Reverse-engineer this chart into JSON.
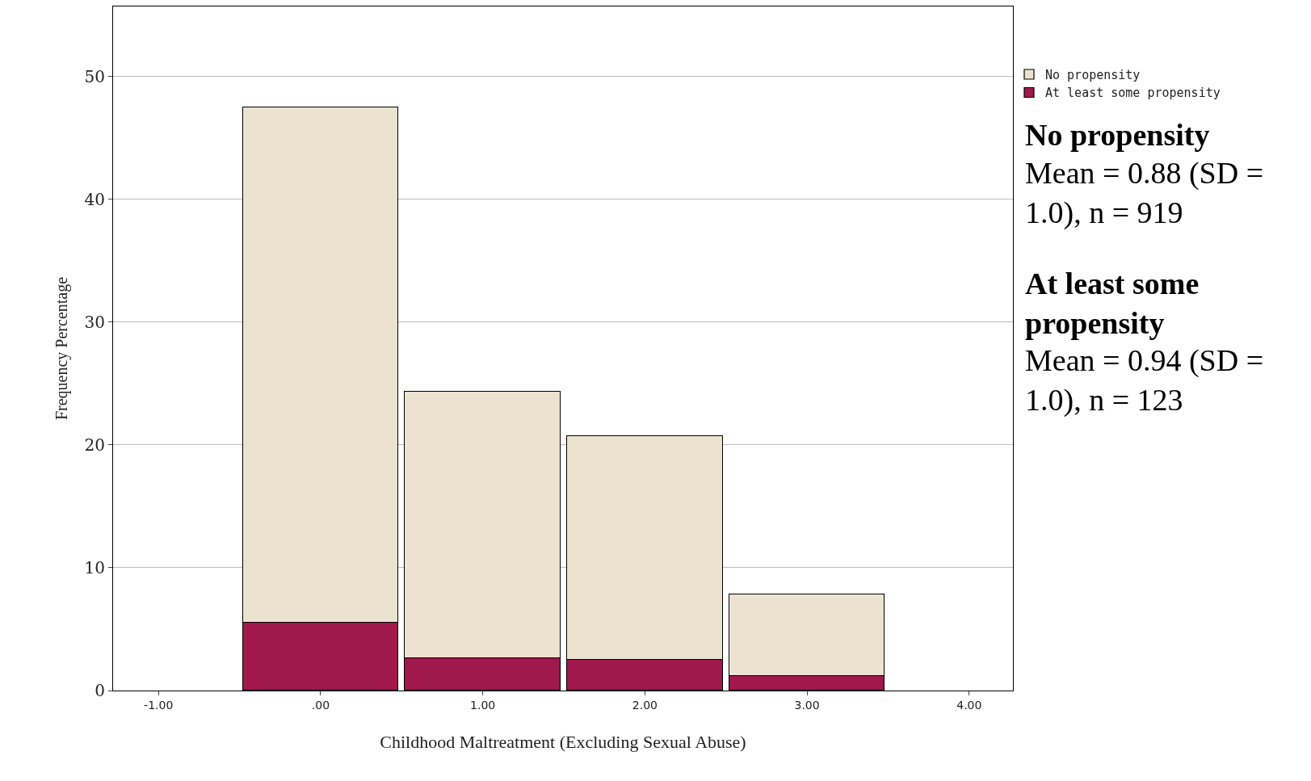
{
  "chart_data": {
    "type": "bar",
    "stacked": true,
    "xlabel": "Childhood Maltreatment (Excluding Sexual Abuse)",
    "ylabel": "Frequency Percentage",
    "x": [
      0,
      1,
      2,
      3
    ],
    "series": [
      {
        "name": "At least some propensity",
        "color": "#a0184c",
        "values": [
          5.5,
          2.6,
          2.5,
          1.2
        ]
      },
      {
        "name": "No propensity",
        "color": "#ebe3cf",
        "values": [
          42.0,
          21.7,
          18.2,
          6.6
        ]
      }
    ],
    "xlim": [
      -1.28,
      4.27
    ],
    "xticks": [
      {
        "value": -1,
        "label": "-1.00"
      },
      {
        "value": 0,
        "label": ".00"
      },
      {
        "value": 1,
        "label": "1.00"
      },
      {
        "value": 2,
        "label": "2.00"
      },
      {
        "value": 3,
        "label": "3.00"
      },
      {
        "value": 4,
        "label": "4.00"
      }
    ],
    "ylim": [
      0,
      55.7
    ],
    "yticks": [
      0,
      10,
      20,
      30,
      40,
      50
    ],
    "grid": "y",
    "legend": "top right",
    "annotations": [
      "No propensity",
      "Mean = 0.88 (SD = 1.0), n = 919",
      "At least some propensity",
      "Mean = 0.94 (SD = 1.0), n = 123"
    ]
  }
}
